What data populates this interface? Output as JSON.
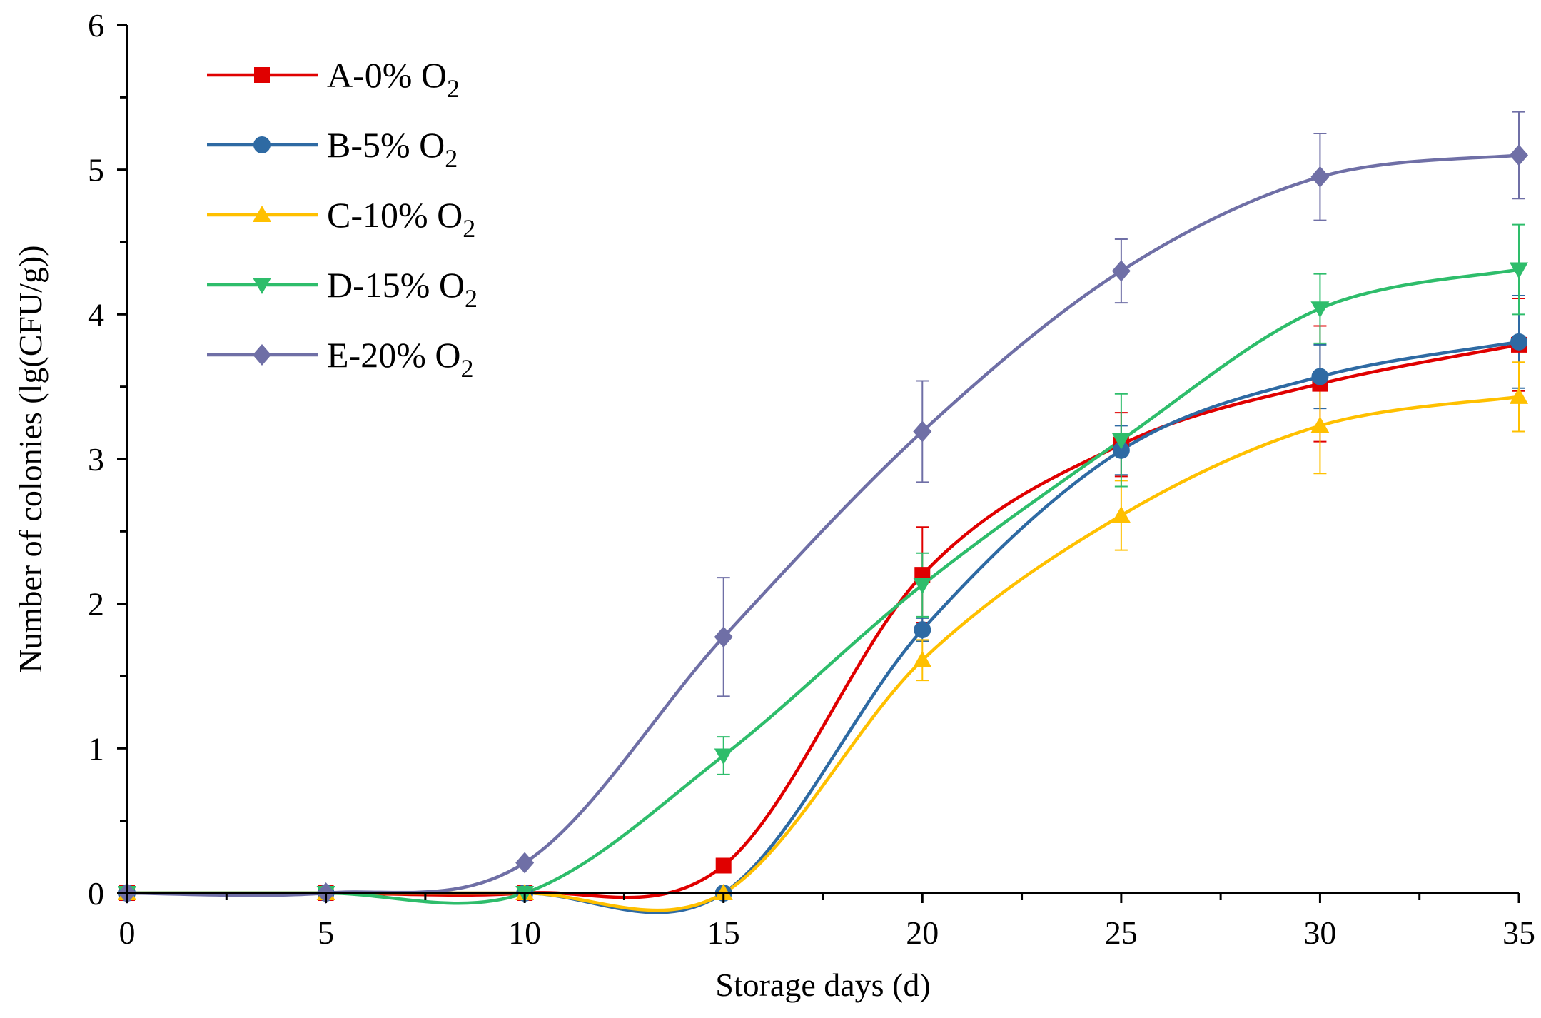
{
  "chart_data": {
    "type": "line",
    "title": "",
    "xlabel": "Storage days (d)",
    "ylabel": "Number of colonies (lg(CFU/g))",
    "xlim": [
      0,
      35
    ],
    "ylim": [
      0,
      6
    ],
    "x_ticks": [
      0,
      5,
      10,
      15,
      20,
      25,
      30,
      35
    ],
    "x_tick_labels": [
      "0",
      "5",
      "10",
      "15",
      "20",
      "25",
      "30",
      "35"
    ],
    "y_ticks": [
      0,
      1,
      2,
      3,
      4,
      5,
      6
    ],
    "y_tick_labels": [
      "0",
      "1",
      "2",
      "3",
      "4",
      "5",
      "6"
    ],
    "grid": false,
    "legend_position": "top-left",
    "x": [
      0,
      5,
      10,
      15,
      20,
      25,
      30,
      35
    ],
    "series": [
      {
        "name": "A-0% O",
        "name_subscript": "2",
        "color": "#e00000",
        "marker": "square",
        "values": [
          0,
          0,
          0,
          0.19,
          2.2,
          3.1,
          3.52,
          3.79
        ],
        "errors": [
          0,
          0,
          0,
          0,
          0.33,
          0.22,
          0.4,
          0.32
        ]
      },
      {
        "name": "B-5% O",
        "name_subscript": "2",
        "color": "#2e6aa3",
        "marker": "circle",
        "values": [
          0,
          0,
          0,
          0,
          1.82,
          3.06,
          3.57,
          3.81
        ],
        "errors": [
          0,
          0,
          0,
          0,
          0.08,
          0.17,
          0.22,
          0.32
        ]
      },
      {
        "name": "C-10% O",
        "name_subscript": "2",
        "color": "#ffc000",
        "marker": "triangle-up",
        "values": [
          0,
          0,
          0,
          0,
          1.61,
          2.61,
          3.23,
          3.43
        ],
        "errors": [
          0,
          0,
          0,
          0,
          0.14,
          0.24,
          0.33,
          0.24
        ]
      },
      {
        "name": "D-15% O",
        "name_subscript": "2",
        "color": "#2ebd6b",
        "marker": "triangle-down",
        "values": [
          0,
          0,
          0,
          0.95,
          2.13,
          3.13,
          4.04,
          4.31
        ],
        "errors": [
          0,
          0,
          0,
          0.13,
          0.22,
          0.32,
          0.24,
          0.31
        ]
      },
      {
        "name": "E-20% O",
        "name_subscript": "2",
        "color": "#6f6fa6",
        "marker": "diamond",
        "values": [
          0,
          0,
          0.21,
          1.77,
          3.19,
          4.3,
          4.95,
          5.1
        ],
        "errors": [
          0,
          0,
          0,
          0.41,
          0.35,
          0.22,
          0.3,
          0.3
        ]
      }
    ]
  }
}
